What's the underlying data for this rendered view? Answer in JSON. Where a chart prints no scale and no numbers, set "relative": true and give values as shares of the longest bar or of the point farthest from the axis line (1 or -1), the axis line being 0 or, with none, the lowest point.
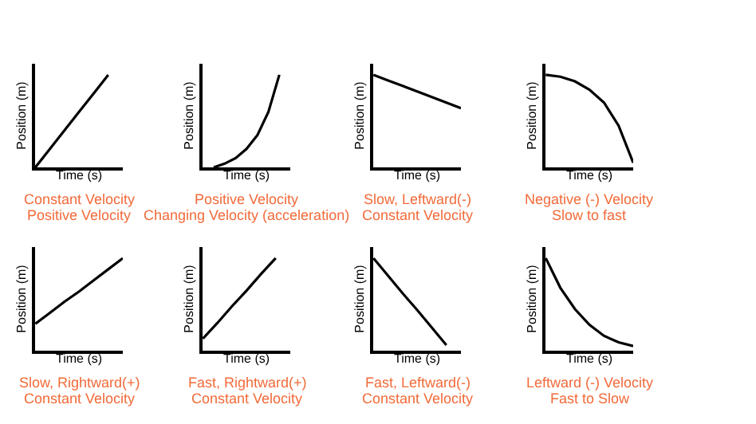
{
  "chart_data": [
    {
      "type": "line",
      "relative": true,
      "xlabel": "Time (s)",
      "ylabel": "Position (m)",
      "annotations": [
        "Constant Velocity",
        "Positive Velocity"
      ],
      "categories": [
        null,
        null,
        null,
        null,
        null,
        null,
        null
      ],
      "series": [
        {
          "color": "#000000",
          "values": [
            0,
            0.2,
            0.4,
            0.6,
            0.8,
            1,
            null
          ]
        }
      ]
    },
    {
      "type": "line",
      "relative": true,
      "xlabel": "Time (s)",
      "ylabel": "Position (m)",
      "annotations": [
        "Positive Velocity",
        "Changing Velocity (acceleration)"
      ],
      "categories": [
        null,
        null,
        null,
        null,
        null,
        null,
        null,
        null,
        null
      ],
      "series": [
        {
          "color": "#000000",
          "values": [
            null,
            0,
            0.04,
            0.1,
            0.2,
            0.35,
            0.6,
            1,
            null
          ]
        }
      ]
    },
    {
      "type": "line",
      "relative": true,
      "xlabel": "Time (s)",
      "ylabel": "Position (m)",
      "annotations": [
        "Slow, Leftward(-)",
        "Constant Velocity"
      ],
      "categories": [
        null,
        null,
        null,
        null,
        null,
        null,
        null
      ],
      "series": [
        {
          "color": "#000000",
          "values": [
            1,
            0.94,
            0.88,
            0.82,
            0.76,
            0.7,
            0.64
          ]
        }
      ]
    },
    {
      "type": "line",
      "relative": true,
      "xlabel": "Time (s)",
      "ylabel": "Position (m)",
      "annotations": [
        "Negative (-) Velocity",
        "Slow to fast"
      ],
      "categories": [
        null,
        null,
        null,
        null,
        null,
        null,
        null
      ],
      "series": [
        {
          "color": "#000000",
          "values": [
            1,
            0.98,
            0.93,
            0.84,
            0.7,
            0.45,
            0.05
          ]
        }
      ]
    },
    {
      "type": "line",
      "relative": true,
      "xlabel": "Time (s)",
      "ylabel": "Position (m)",
      "annotations": [
        "Slow, Rightward(+)",
        "Constant Velocity"
      ],
      "categories": [
        null,
        null,
        null,
        null,
        null,
        null,
        null
      ],
      "series": [
        {
          "color": "#000000",
          "values": [
            0.29,
            0.41,
            0.53,
            0.64,
            0.76,
            0.88,
            1
          ]
        }
      ]
    },
    {
      "type": "line",
      "relative": true,
      "xlabel": "Time (s)",
      "ylabel": "Position (m)",
      "annotations": [
        "Fast, Rightward(+)",
        "Constant Velocity"
      ],
      "categories": [
        null,
        null,
        null,
        null,
        null,
        null,
        null
      ],
      "series": [
        {
          "color": "#000000",
          "values": [
            0.13,
            0.3,
            0.48,
            0.65,
            0.83,
            1,
            null
          ]
        }
      ]
    },
    {
      "type": "line",
      "relative": true,
      "xlabel": "Time (s)",
      "ylabel": "Position (m)",
      "annotations": [
        "Fast, Leftward(-)",
        "Constant Velocity"
      ],
      "categories": [
        null,
        null,
        null,
        null,
        null,
        null,
        null
      ],
      "series": [
        {
          "color": "#000000",
          "values": [
            1,
            0.81,
            0.62,
            0.44,
            0.25,
            0.06,
            null
          ]
        }
      ]
    },
    {
      "type": "line",
      "relative": true,
      "xlabel": "Time (s)",
      "ylabel": "Position (m)",
      "annotations": [
        "Leftward (-) Velocity",
        "Fast to Slow"
      ],
      "categories": [
        null,
        null,
        null,
        null,
        null,
        null,
        null
      ],
      "series": [
        {
          "color": "#000000",
          "values": [
            1,
            0.68,
            0.45,
            0.28,
            0.16,
            0.09,
            0.05
          ]
        }
      ]
    }
  ]
}
